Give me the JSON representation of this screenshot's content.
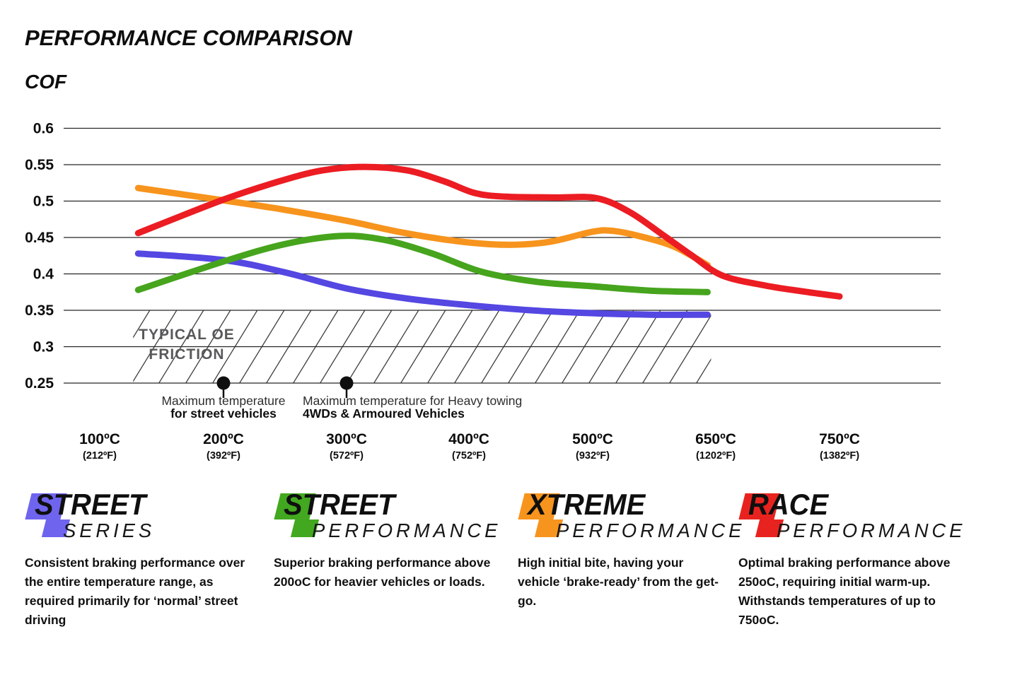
{
  "chart_data": {
    "type": "line",
    "title": "PERFORMANCE COMPARISON",
    "ylabel": "COF",
    "grid": true,
    "legend_position": "bottom",
    "y_axis": {
      "min": 0.25,
      "max": 0.6,
      "tick_labels": [
        "0.6",
        "0.55",
        "0.5",
        "0.45",
        "0.4",
        "0.35",
        "0.3",
        "0.25"
      ],
      "tick_values": [
        0.6,
        0.55,
        0.5,
        0.45,
        0.4,
        0.35,
        0.3,
        0.25
      ]
    },
    "x_axis": {
      "ticks": [
        {
          "t": 100,
          "label_c": "100ºC",
          "label_f": "(212ºF)"
        },
        {
          "t": 200,
          "label_c": "200ºC",
          "label_f": "(392ºF)"
        },
        {
          "t": 300,
          "label_c": "300ºC",
          "label_f": "(572ºF)"
        },
        {
          "t": 400,
          "label_c": "400ºC",
          "label_f": "(752ºF)"
        },
        {
          "t": 500,
          "label_c": "500ºC",
          "label_f": "(932ºF)"
        },
        {
          "t": 650,
          "label_c": "650ºC",
          "label_f": "(1202ºF)"
        },
        {
          "t": 750,
          "label_c": "750ºC",
          "label_f": "(1382ºF)"
        }
      ]
    },
    "series": [
      {
        "name": "Street Series",
        "color": "#5447e2",
        "points": [
          [
            131,
            0.428
          ],
          [
            200,
            0.419
          ],
          [
            250,
            0.402
          ],
          [
            300,
            0.38
          ],
          [
            350,
            0.366
          ],
          [
            400,
            0.357
          ],
          [
            450,
            0.35
          ],
          [
            500,
            0.346
          ],
          [
            570,
            0.344
          ],
          [
            640,
            0.344
          ]
        ]
      },
      {
        "name": "Street Performance",
        "color": "#46a41d",
        "points": [
          [
            131,
            0.378
          ],
          [
            200,
            0.417
          ],
          [
            250,
            0.441
          ],
          [
            295,
            0.452
          ],
          [
            330,
            0.447
          ],
          [
            370,
            0.428
          ],
          [
            410,
            0.403
          ],
          [
            455,
            0.389
          ],
          [
            500,
            0.383
          ],
          [
            570,
            0.377
          ],
          [
            640,
            0.375
          ]
        ]
      },
      {
        "name": "Xtreme Performance",
        "color": "#f7941d",
        "points": [
          [
            131,
            0.518
          ],
          [
            200,
            0.501
          ],
          [
            250,
            0.488
          ],
          [
            300,
            0.473
          ],
          [
            345,
            0.457
          ],
          [
            390,
            0.445
          ],
          [
            430,
            0.44
          ],
          [
            465,
            0.444
          ],
          [
            500,
            0.458
          ],
          [
            525,
            0.459
          ],
          [
            560,
            0.451
          ],
          [
            600,
            0.437
          ],
          [
            640,
            0.412
          ]
        ]
      },
      {
        "name": "Race Performance",
        "color": "#ec1c23",
        "points": [
          [
            131,
            0.456
          ],
          [
            200,
            0.502
          ],
          [
            245,
            0.527
          ],
          [
            280,
            0.542
          ],
          [
            315,
            0.547
          ],
          [
            350,
            0.542
          ],
          [
            380,
            0.527
          ],
          [
            405,
            0.511
          ],
          [
            430,
            0.506
          ],
          [
            470,
            0.505
          ],
          [
            505,
            0.504
          ],
          [
            545,
            0.485
          ],
          [
            585,
            0.454
          ],
          [
            620,
            0.426
          ],
          [
            655,
            0.398
          ],
          [
            690,
            0.384
          ],
          [
            720,
            0.376
          ],
          [
            750,
            0.369
          ]
        ]
      }
    ],
    "band": {
      "label_line1": "TYPICAL OE",
      "label_line2": "FRICTION",
      "cof_from": 0.25,
      "cof_to": 0.35,
      "t_from": 131,
      "t_to": 640,
      "label_color": "#58595b"
    },
    "markers": [
      {
        "t": 200,
        "cof": 0.25,
        "line1": "Maximum temperature",
        "line2": "for street vehicles",
        "align": "center"
      },
      {
        "t": 300,
        "cof": 0.25,
        "line1": "Maximum temperature for Heavy towing",
        "line2": "4WDs & Armoured Vehicles",
        "align": "left"
      }
    ]
  },
  "legend": [
    {
      "word1": "STREET",
      "word2": "SERIES",
      "color": "#6f64ee",
      "description": "Consistent braking performance over the entire temperature range, as required primarily for ‘normal’ street driving"
    },
    {
      "word1": "STREET",
      "word2": "PERFORMANCE",
      "color": "#42a81f",
      "description": "Superior braking performance above 200oC for heavier vehicles or loads."
    },
    {
      "word1": "XTREME",
      "word2": "PERFORMANCE",
      "color": "#f7941d",
      "description": "High initial bite, having your vehicle ‘brake-ready’ from the get-go."
    },
    {
      "word1": "RACE",
      "word2": "PERFORMANCE",
      "color": "#e8231f",
      "description": "Optimal braking performance above 250oC, requiring initial warm-up. Withstands temperatures of up to 750oC."
    }
  ]
}
